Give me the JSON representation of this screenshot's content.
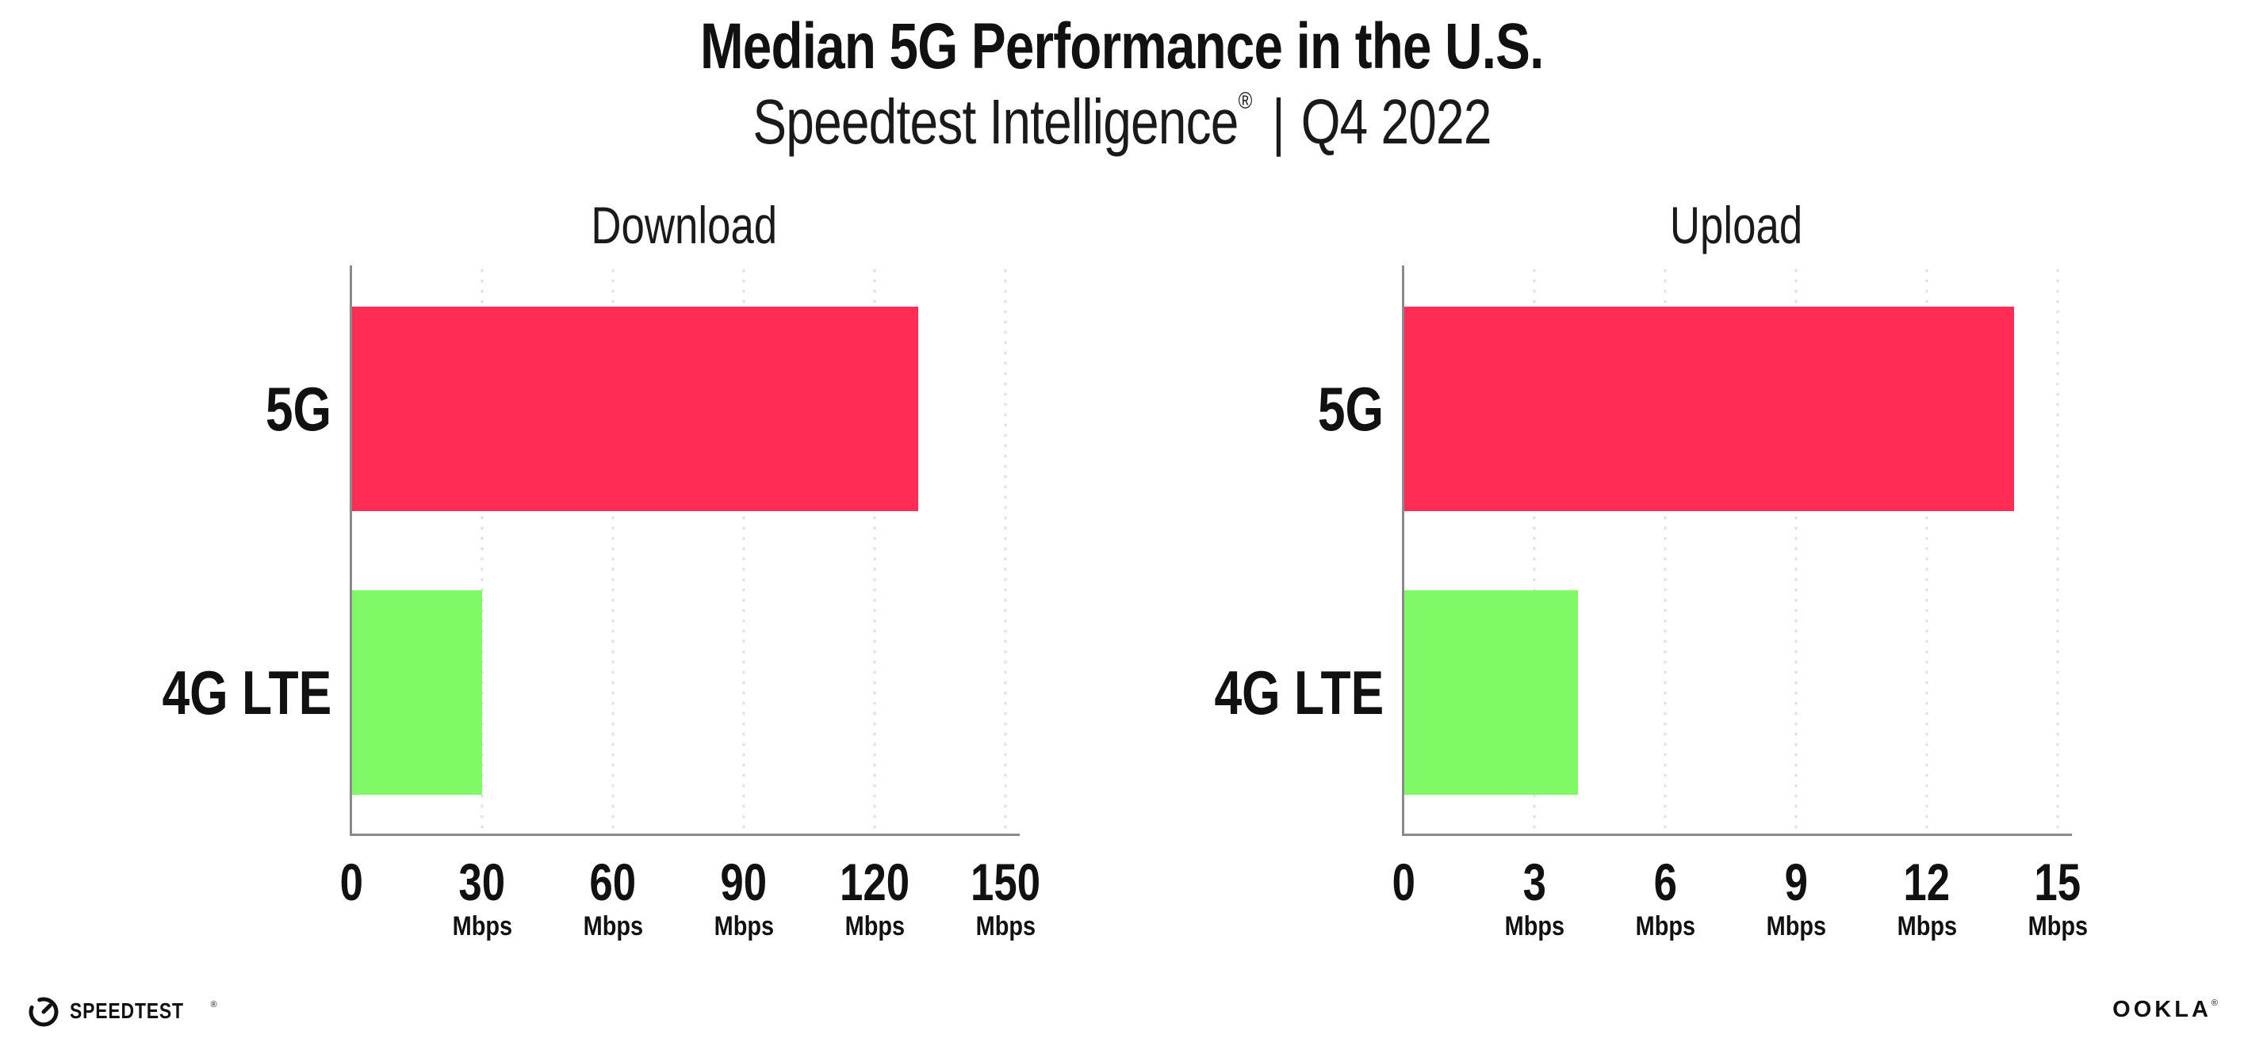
{
  "header": {
    "title": "Median 5G Performance in the U.S.",
    "subtitle": {
      "brand": "Speedtest Intelligence",
      "registered": "®",
      "separator": "|",
      "period": "Q4 2022"
    }
  },
  "chart_data": [
    {
      "type": "bar",
      "orientation": "horizontal",
      "title": "Download",
      "categories": [
        "5G",
        "4G LTE"
      ],
      "values": [
        130,
        30
      ],
      "unit": "Mbps",
      "xlim": [
        0,
        150
      ],
      "xticks": [
        {
          "label": "0",
          "unit": ""
        },
        {
          "label": "30",
          "unit": "Mbps"
        },
        {
          "label": "60",
          "unit": "Mbps"
        },
        {
          "label": "90",
          "unit": "Mbps"
        },
        {
          "label": "120",
          "unit": "Mbps"
        },
        {
          "label": "150",
          "unit": "Mbps"
        }
      ],
      "bar_colors": [
        "#FF2D55",
        "#7FFA66"
      ],
      "grid": "vertical-dotted",
      "legend": "none"
    },
    {
      "type": "bar",
      "orientation": "horizontal",
      "title": "Upload",
      "categories": [
        "5G",
        "4G LTE"
      ],
      "values": [
        14,
        4
      ],
      "unit": "Mbps",
      "xlim": [
        0,
        15
      ],
      "xticks": [
        {
          "label": "0",
          "unit": ""
        },
        {
          "label": "3",
          "unit": "Mbps"
        },
        {
          "label": "6",
          "unit": "Mbps"
        },
        {
          "label": "9",
          "unit": "Mbps"
        },
        {
          "label": "12",
          "unit": "Mbps"
        },
        {
          "label": "15",
          "unit": "Mbps"
        }
      ],
      "bar_colors": [
        "#FF2D55",
        "#7FFA66"
      ],
      "grid": "vertical-dotted",
      "legend": "none"
    }
  ],
  "footer": {
    "speedtest_label": "SPEEDTEST",
    "speedtest_trademark": "®",
    "gauge_icon": "speedtest-gauge",
    "ookla_label": "OOKLA",
    "ookla_trademark": "®"
  },
  "colors": {
    "bar_5g": "#FF2D55",
    "bar_4g_lte": "#7FFA66",
    "axis": "#8A8A90",
    "gridline_dots": "#E4E4EE",
    "text": "#111111",
    "background": "#FFFFFF"
  }
}
